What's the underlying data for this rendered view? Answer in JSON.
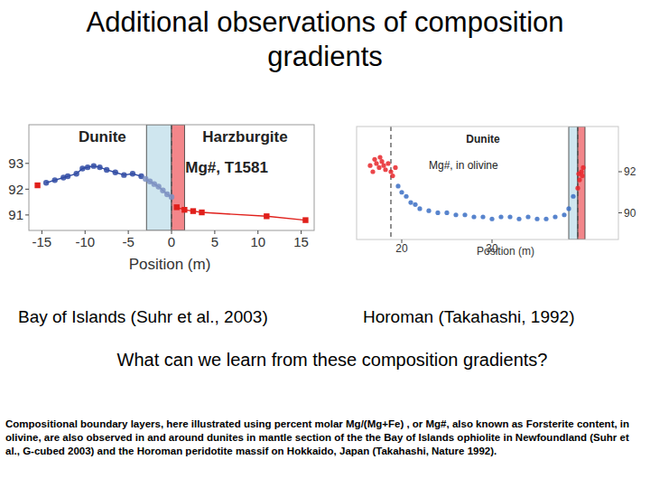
{
  "title": "Additional observations of composition gradients",
  "chart_data": [
    {
      "type": "scatter",
      "xlabel": "Position (m)",
      "xlim": [
        -16.5,
        16.5
      ],
      "ylim": [
        90.4,
        94.5
      ],
      "xticks": [
        -15,
        -10,
        -5,
        0,
        5,
        10,
        15
      ],
      "yticks": [
        91,
        92,
        93
      ],
      "annotations": [
        {
          "text": "Dunite",
          "x": -8,
          "y": 94.05
        },
        {
          "text": "Harzburgite",
          "x": 8.5,
          "y": 94.05
        },
        {
          "text": "Mg#, T1581",
          "x": 1.6,
          "y": 92.85
        }
      ],
      "dividers": [
        0
      ],
      "spans": [
        {
          "x0": -2.9,
          "x1": 0,
          "color": "#cfe6ef"
        },
        {
          "x0": 0,
          "x1": 1.5,
          "color": "#f3868a"
        }
      ],
      "series": [
        {
          "color": "#e0201b",
          "marker": "square",
          "line_style": "solid",
          "x": [
            -15.5
          ],
          "values": [
            92.15
          ]
        },
        {
          "color": "#2f4aa3",
          "marker": "circle",
          "line_style": "solid",
          "x": [
            -14.5,
            -13.5,
            -12.5,
            -12,
            -11,
            -10.3,
            -9.7,
            -9,
            -8.3,
            -7.5,
            -6.5,
            -5.5,
            -4.5,
            -3.5
          ],
          "values": [
            92.25,
            92.35,
            92.45,
            92.5,
            92.6,
            92.8,
            92.85,
            92.9,
            92.85,
            92.75,
            92.65,
            92.55,
            92.6,
            92.5
          ]
        },
        {
          "color": "#7d90c2",
          "marker": "circle",
          "line_style": "solid",
          "x": [
            -3,
            -2.5,
            -2,
            -1.5,
            -1,
            -0.5,
            0
          ],
          "values": [
            92.4,
            92.3,
            92.2,
            92.1,
            91.95,
            91.8,
            91.7
          ]
        },
        {
          "color": "#e0201b",
          "marker": "square",
          "line_style": "solid",
          "x": [
            0.6,
            1.5,
            2.5,
            3.5,
            11,
            15.5
          ],
          "values": [
            91.3,
            91.2,
            91.15,
            91.1,
            90.95,
            90.8
          ]
        }
      ]
    },
    {
      "type": "scatter",
      "xlabel": "Position (m)",
      "xlim": [
        15,
        44
      ],
      "ylim": [
        88.7,
        94.2
      ],
      "xticks": [
        20,
        30
      ],
      "yticks": [
        90,
        92
      ],
      "annotations": [
        {
          "text": "Dunite",
          "x": 29,
          "y": 93.6
        },
        {
          "text": "Mg#, in olivine",
          "x": 23,
          "y": 92.3
        }
      ],
      "dividers": [
        18.8,
        39.5
      ],
      "spans": [
        {
          "x0": 38.5,
          "x1": 39.5,
          "color": "#cfe6ef"
        },
        {
          "x0": 39.5,
          "x1": 40.3,
          "color": "#f3868a"
        }
      ],
      "series": [
        {
          "color": "#e8262a",
          "marker": "circle",
          "line_style": "none",
          "x": [
            16.5,
            16.8,
            17,
            17.2,
            17.5,
            17.6,
            17.8,
            18,
            18.2,
            18.5,
            18.8,
            19,
            19.3
          ],
          "values": [
            92.3,
            92.0,
            92.6,
            92.4,
            92.2,
            92.7,
            92.5,
            92.3,
            92.1,
            92.4,
            92.0,
            91.8,
            92.2
          ]
        },
        {
          "color": "#3b6fc4",
          "marker": "circle",
          "line_style": "none",
          "x": [
            19.6,
            20,
            20.5,
            21,
            21.5,
            22,
            23,
            24,
            25,
            26,
            27,
            28,
            29,
            30,
            31,
            32,
            33,
            34,
            35,
            36,
            37,
            38,
            38.5,
            39
          ],
          "values": [
            91.3,
            91.0,
            90.8,
            90.5,
            90.4,
            90.2,
            90.1,
            90.0,
            90.0,
            89.9,
            89.9,
            89.8,
            89.8,
            89.7,
            89.8,
            89.8,
            89.7,
            89.8,
            89.7,
            89.7,
            89.8,
            89.9,
            90.2,
            90.8
          ]
        },
        {
          "color": "#e8262a",
          "marker": "circle",
          "line_style": "none",
          "x": [
            39.5,
            39.6,
            39.7,
            39.9,
            40,
            40.1
          ],
          "values": [
            91.2,
            91.9,
            91.6,
            92.0,
            91.8,
            92.2
          ]
        }
      ]
    }
  ],
  "captions": [
    "Bay of Islands (Suhr et al., 2003)",
    "Horoman (Takahashi, 1992)"
  ],
  "question": "What can we learn from these composition gradients?",
  "footnote": "Compositional boundary layers, here illustrated using percent molar Mg/(Mg+Fe) , or Mg#, also known as Forsterite content, in olivine, are also observed in and around dunites in mantle section of the the Bay of Islands ophiolite in Newfoundland (Suhr et al., G-cubed 2003) and the Horoman peridotite massif on Hokkaido, Japan (Takahashi, Nature 1992)."
}
